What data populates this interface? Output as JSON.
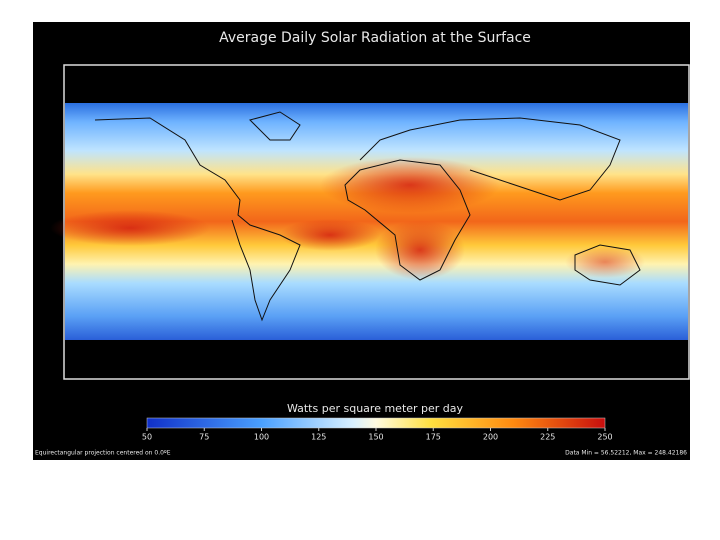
{
  "title": "Average Daily Solar Radiation at the Surface",
  "colorbar": {
    "label": "Watts per square meter per day",
    "lim": [
      50,
      250
    ],
    "ticks": [
      50,
      75,
      100,
      125,
      150,
      175,
      200,
      225,
      250
    ]
  },
  "footer": {
    "projection": "Equirectangular projection centered on 0.0ºE",
    "data_range": "Data Min = 56.52212, Max = 248.42186"
  }
}
